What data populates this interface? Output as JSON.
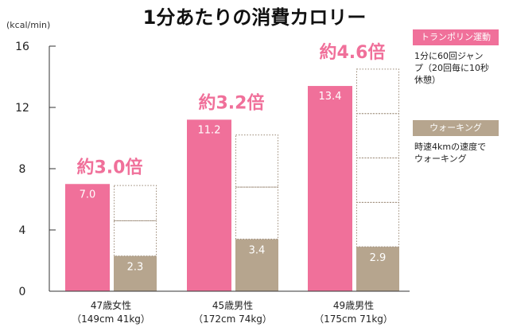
{
  "colors": {
    "trampoline": "#F0709A",
    "walking": "#B6A58E",
    "axis": "#333333",
    "dotted": "#9C8B78",
    "multiplier_text": "#F0709A"
  },
  "legend": {
    "trampoline": {
      "label": "トランポリン運動",
      "desc_line1": "1分に60回ジャン",
      "desc_line2": "プ（20回毎に10秒",
      "desc_line3": "休憩）"
    },
    "walking": {
      "label": "ウォーキング",
      "desc_line1": "時速4kmの速度で",
      "desc_line2": "ウォーキング"
    }
  },
  "chart_data": {
    "type": "bar",
    "title": "1分あたりの消費カロリー",
    "ylabel": "(kcal/min)",
    "ylim": [
      0,
      16
    ],
    "yticks": [
      0,
      4,
      8,
      12,
      16
    ],
    "categories": [
      {
        "line1": "47歳女性",
        "line2": "（149cm 41kg）"
      },
      {
        "line1": "45歳男性",
        "line2": "（172cm 74kg）"
      },
      {
        "line1": "49歳男性",
        "line2": "（175cm 71kg）"
      }
    ],
    "series": [
      {
        "name": "トランポリン運動",
        "values": [
          7.0,
          11.2,
          13.4
        ],
        "labels": [
          "7.0",
          "11.2",
          "13.4"
        ]
      },
      {
        "name": "ウォーキング",
        "values": [
          2.3,
          3.4,
          2.9
        ],
        "labels": [
          "2.3",
          "3.4",
          "2.9"
        ]
      }
    ],
    "multipliers": [
      "約3.0倍",
      "約3.2倍",
      "約4.6倍"
    ]
  }
}
